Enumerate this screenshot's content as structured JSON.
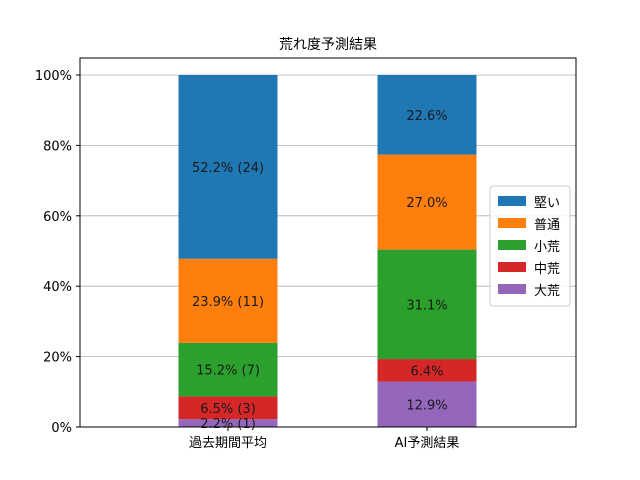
{
  "chart_data": {
    "type": "bar",
    "stacked": true,
    "title": "荒れ度予測結果",
    "xlabel": "",
    "ylabel": "",
    "categories": [
      "過去期間平均",
      "AI予測結果"
    ],
    "ylim": [
      0,
      100
    ],
    "ytick_values": [
      0,
      20,
      40,
      60,
      80,
      100
    ],
    "ytick_labels": [
      "0%",
      "20%",
      "40%",
      "60%",
      "80%",
      "100%"
    ],
    "grid": "horizontal",
    "legend_position": "right",
    "series": [
      {
        "name": "大荒",
        "color": "#9467bd",
        "values": [
          2.2,
          12.9
        ],
        "labels": [
          "2.2% (1)",
          "12.9%"
        ]
      },
      {
        "name": "中荒",
        "color": "#d62728",
        "values": [
          6.5,
          6.4
        ],
        "labels": [
          "6.5% (3)",
          "6.4%"
        ]
      },
      {
        "name": "小荒",
        "color": "#2ca02c",
        "values": [
          15.2,
          31.1
        ],
        "labels": [
          "15.2% (7)",
          "31.1%"
        ]
      },
      {
        "name": "普通",
        "color": "#ff7f0e",
        "values": [
          23.9,
          27.0
        ],
        "labels": [
          "23.9% (11)",
          "27.0%"
        ]
      },
      {
        "name": "堅い",
        "color": "#1f77b4",
        "values": [
          52.2,
          22.6
        ],
        "labels": [
          "52.2% (24)",
          "22.6%"
        ]
      }
    ],
    "legend_order": [
      "堅い",
      "普通",
      "小荒",
      "中荒",
      "大荒"
    ]
  }
}
